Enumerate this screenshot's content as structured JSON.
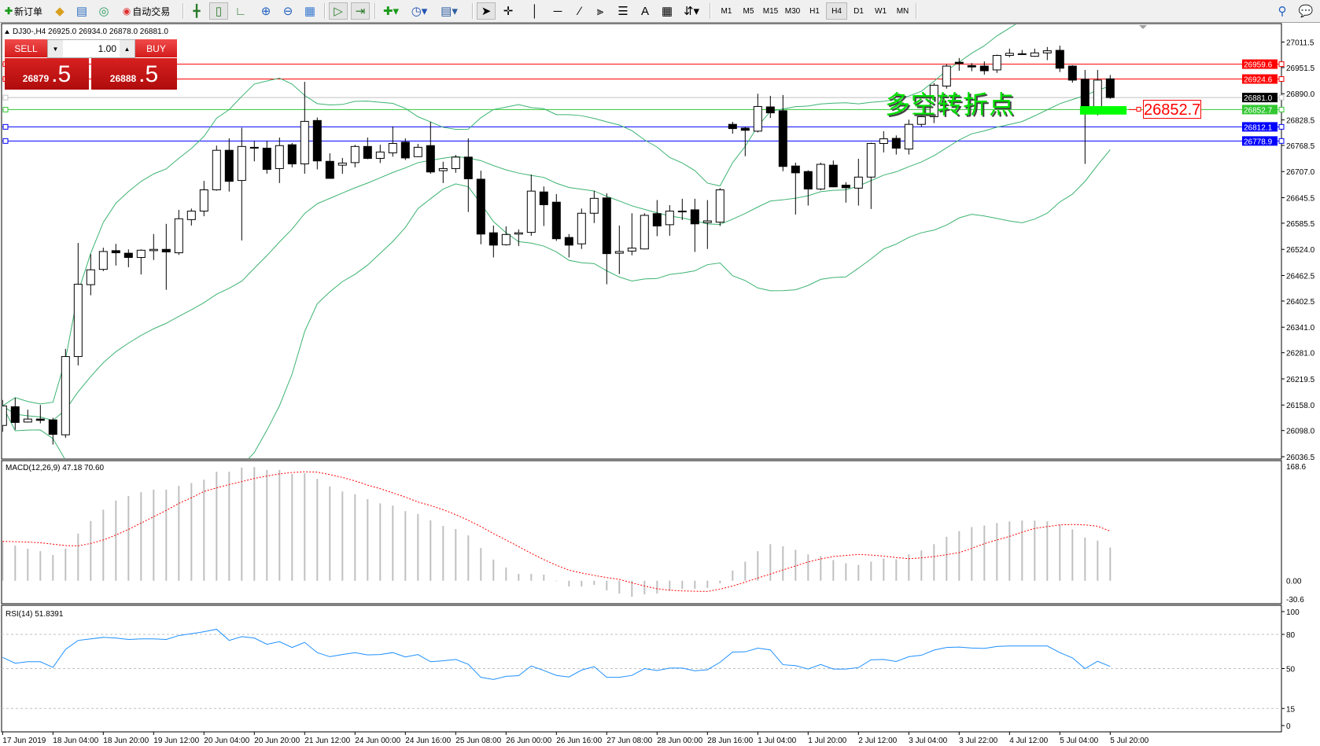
{
  "toolbar": {
    "new_order": "新订单",
    "auto_trade": "自动交易",
    "timeframes": [
      "M1",
      "M5",
      "M15",
      "M30",
      "H1",
      "H4",
      "D1",
      "W1",
      "MN"
    ],
    "active_timeframe": "H4",
    "text_tool": "A"
  },
  "chart": {
    "header": "DJ30-,H4  26925.0 26934.0 26878.0 26881.0"
  },
  "trade_panel": {
    "sell_label": "SELL",
    "buy_label": "BUY",
    "lot": "1.00",
    "sell_main": "26879",
    "sell_frac": ".5",
    "buy_main": "26888",
    "buy_frac": ".5"
  },
  "annotation": {
    "text": "多空转折点",
    "price_label": "26852.7",
    "text_color": "#00e000"
  },
  "chart_data": {
    "type": "candlestick",
    "symbol": "DJ30-",
    "timeframe": "H4",
    "ohlc": [
      [
        26110,
        26170,
        26095,
        26156
      ],
      [
        26154,
        26175,
        26100,
        26117
      ],
      [
        26118,
        26147,
        26117,
        26125
      ],
      [
        26125,
        26158,
        26115,
        26122
      ],
      [
        26123,
        26128,
        26065,
        26089
      ],
      [
        26088,
        26290,
        26081,
        26272
      ],
      [
        26272,
        26539,
        26251,
        26442
      ],
      [
        26441,
        26513,
        26416,
        26476
      ],
      [
        26477,
        26528,
        26473,
        26519
      ],
      [
        26521,
        26537,
        26486,
        26516
      ],
      [
        26515,
        26524,
        26482,
        26505
      ],
      [
        26505,
        26524,
        26465,
        26522
      ],
      [
        26521,
        26560,
        26499,
        26524
      ],
      [
        26524,
        26584,
        26429,
        26518
      ],
      [
        26516,
        26617,
        26511,
        26596
      ],
      [
        26594,
        26620,
        26580,
        26614
      ],
      [
        26614,
        26685,
        26602,
        26664
      ],
      [
        26664,
        26768,
        26662,
        26757
      ],
      [
        26757,
        26785,
        26660,
        26684
      ],
      [
        26686,
        26810,
        26545,
        26766
      ],
      [
        26762,
        26779,
        26731,
        26764
      ],
      [
        26762,
        26779,
        26702,
        26712
      ],
      [
        26714,
        26787,
        26680,
        26768
      ],
      [
        26770,
        26774,
        26717,
        26725
      ],
      [
        26725,
        26918,
        26702,
        26825
      ],
      [
        26827,
        26834,
        26712,
        26732
      ],
      [
        26731,
        26750,
        26690,
        26691
      ],
      [
        26722,
        26739,
        26702,
        26727
      ],
      [
        26728,
        26770,
        26717,
        26766
      ],
      [
        26766,
        26787,
        26736,
        26738
      ],
      [
        26738,
        26770,
        26727,
        26753
      ],
      [
        26751,
        26813,
        26742,
        26773
      ],
      [
        26776,
        26785,
        26734,
        26739
      ],
      [
        26742,
        26772,
        26741,
        26764
      ],
      [
        26768,
        26824,
        26702,
        26706
      ],
      [
        26709,
        26730,
        26680,
        26714
      ],
      [
        26714,
        26746,
        26704,
        26741
      ],
      [
        26741,
        26785,
        26612,
        26690
      ],
      [
        26689,
        26709,
        26536,
        26560
      ],
      [
        26563,
        26580,
        26505,
        26534
      ],
      [
        26535,
        26578,
        26533,
        26559
      ],
      [
        26560,
        26571,
        26532,
        26563
      ],
      [
        26564,
        26700,
        26556,
        26661
      ],
      [
        26659,
        26672,
        26579,
        26629
      ],
      [
        26635,
        26654,
        26544,
        26549
      ],
      [
        26552,
        26560,
        26505,
        26534
      ],
      [
        26537,
        26620,
        26525,
        26609
      ],
      [
        26609,
        26662,
        26586,
        26644
      ],
      [
        26645,
        26656,
        26442,
        26514
      ],
      [
        26515,
        26580,
        26466,
        26519
      ],
      [
        26520,
        26609,
        26510,
        26527
      ],
      [
        26525,
        26609,
        26524,
        26604
      ],
      [
        26608,
        26640,
        26555,
        26579
      ],
      [
        26582,
        26628,
        26556,
        26614
      ],
      [
        26613,
        26643,
        26593,
        26614
      ],
      [
        26617,
        26643,
        26518,
        26584
      ],
      [
        26587,
        26640,
        26525,
        26591
      ],
      [
        26588,
        26668,
        26579,
        26664
      ],
      [
        26818,
        26824,
        26796,
        26808
      ],
      [
        26809,
        26812,
        26743,
        26804
      ],
      [
        26802,
        26890,
        26799,
        26860
      ],
      [
        26859,
        26885,
        26833,
        26845
      ],
      [
        26850,
        26887,
        26708,
        26719
      ],
      [
        26720,
        26728,
        26606,
        26704
      ],
      [
        26707,
        26710,
        26627,
        26666
      ],
      [
        26666,
        26728,
        26663,
        26724
      ],
      [
        26722,
        26733,
        26670,
        26671
      ],
      [
        26675,
        26682,
        26634,
        26669
      ],
      [
        26668,
        26737,
        26627,
        26694
      ],
      [
        26694,
        26775,
        26619,
        26773
      ],
      [
        26773,
        26802,
        26752,
        26784
      ],
      [
        26785,
        26792,
        26747,
        26762
      ],
      [
        26760,
        26829,
        26747,
        26818
      ],
      [
        26818,
        26839,
        26813,
        26836
      ],
      [
        26836,
        26915,
        26821,
        26910
      ],
      [
        26908,
        26959,
        26902,
        26955
      ],
      [
        26964,
        26974,
        26944,
        26961
      ],
      [
        26956,
        26962,
        26943,
        26953
      ],
      [
        26955,
        26966,
        26935,
        26944
      ],
      [
        26946,
        26982,
        26939,
        26980
      ],
      [
        26980,
        26996,
        26976,
        26985
      ],
      [
        26983,
        26993,
        26981,
        26984
      ],
      [
        26978,
        26996,
        26977,
        26986
      ],
      [
        26986,
        27000,
        26969,
        26991
      ],
      [
        26992,
        27003,
        26941,
        26950
      ],
      [
        26955,
        26957,
        26916,
        26922
      ],
      [
        26924,
        26946,
        26725,
        26859
      ],
      [
        26857,
        26946,
        26839,
        26922
      ],
      [
        26925,
        26934,
        26878,
        26881
      ]
    ],
    "bollinger_color": "#3cb371",
    "price_axis_ticks": [
      "27011.5",
      "26951.5",
      "26890.0",
      "26828.5",
      "26768.5",
      "26707.0",
      "26645.5",
      "26585.5",
      "26524.0",
      "26462.5",
      "26402.5",
      "26341.0",
      "26281.0",
      "26219.5",
      "26158.0",
      "26098.0",
      "26036.5"
    ],
    "ylim": [
      26036.5,
      27011.5
    ],
    "hlines": [
      {
        "price": 26959.6,
        "label": "26959.6",
        "color": "#ff0000"
      },
      {
        "price": 26924.6,
        "label": "26924.6",
        "color": "#ff0000"
      },
      {
        "price": 26881.0,
        "label": "26881.0",
        "color": "#c0c0c0",
        "label_bg": "#000000"
      },
      {
        "price": 26852.7,
        "label": "26852.7",
        "color": "#32c832"
      },
      {
        "price": 26812.1,
        "label": "26812.1",
        "color": "#0000ff"
      },
      {
        "price": 26778.9,
        "label": "26778.9",
        "color": "#0000ff"
      }
    ],
    "zone": {
      "from_index": 85.6,
      "to_index": 89.3,
      "top": 26860.8,
      "bottom": 26841.0,
      "color": "#00ff00"
    },
    "time_labels": [
      {
        "index": 0,
        "label": "17 Jun 2019"
      },
      {
        "index": 4,
        "label": "18 Jun 04:00"
      },
      {
        "index": 8,
        "label": "18 Jun 20:00"
      },
      {
        "index": 12,
        "label": "19 Jun 12:00"
      },
      {
        "index": 16,
        "label": "20 Jun 04:00"
      },
      {
        "index": 20,
        "label": "20 Jun 20:00"
      },
      {
        "index": 24,
        "label": "21 Jun 12:00"
      },
      {
        "index": 28,
        "label": "24 Jun 00:00"
      },
      {
        "index": 32,
        "label": "24 Jun 16:00"
      },
      {
        "index": 36,
        "label": "25 Jun 08:00"
      },
      {
        "index": 40,
        "label": "26 Jun 00:00"
      },
      {
        "index": 44,
        "label": "26 Jun 16:00"
      },
      {
        "index": 48,
        "label": "27 Jun 08:00"
      },
      {
        "index": 52,
        "label": "28 Jun 00:00"
      },
      {
        "index": 56,
        "label": "28 Jun 16:00"
      },
      {
        "index": 60,
        "label": "1 Jul 04:00"
      },
      {
        "index": 64,
        "label": "1 Jul 20:00"
      },
      {
        "index": 68,
        "label": "2 Jul 12:00"
      },
      {
        "index": 72,
        "label": "3 Jul 04:00"
      },
      {
        "index": 76,
        "label": "3 Jul 22:00"
      },
      {
        "index": 80,
        "label": "4 Jul 12:00"
      },
      {
        "index": 84,
        "label": "5 Jul 04:00"
      },
      {
        "index": 88,
        "label": "5 Jul 20:00"
      }
    ],
    "macd": {
      "label": "MACD(12,26,9) 47.18 70.60",
      "axis_labels": [
        "168.6",
        "0.00",
        "-30.6"
      ],
      "ylim": [
        -30.6,
        168.6
      ],
      "histogram_color": "#c0c0c0",
      "signal_color": "#ff0000",
      "histogram": [
        56,
        50,
        45.5,
        42,
        36.6,
        45.5,
        67,
        85,
        101,
        114,
        120.5,
        126,
        129.5,
        129.5,
        135,
        139,
        143.7,
        155,
        155,
        161,
        161.6,
        157.5,
        157.5,
        152,
        153,
        145,
        134,
        127,
        123,
        116,
        110,
        107,
        99,
        95,
        86,
        78,
        73.5,
        64.5,
        46.6,
        30,
        18.7,
        9.7,
        9.7,
        8.6,
        -0.7,
        -8.2,
        -8.2,
        -6,
        -13.8,
        -18.3,
        -22.8,
        -19.4,
        -18.3,
        -14.5,
        -11.5,
        -11.5,
        -10.3,
        -3.8,
        14.5,
        27,
        42,
        52,
        49,
        44,
        37.4,
        35,
        29.4,
        24.8,
        22.5,
        27,
        31.7,
        30.5,
        37.4,
        43,
        52,
        62.6,
        70.6,
        76.3,
        78.6,
        82,
        84.4,
        85.5,
        85.5,
        84.4,
        80,
        73,
        61.5,
        57,
        47.18
      ],
      "signal": [
        56,
        55.5,
        55,
        54,
        52,
        50,
        49.6,
        53,
        58,
        65,
        73,
        82,
        91,
        100,
        110,
        118,
        127,
        132,
        137,
        141,
        145.5,
        149,
        152,
        154,
        155,
        154.5,
        151,
        147,
        142,
        136,
        131,
        125,
        119,
        112,
        107,
        101,
        94,
        86,
        77,
        67,
        58,
        48.5,
        39,
        30,
        22,
        15,
        11,
        7.5,
        4.5,
        1.9,
        -3,
        -7.5,
        -11.5,
        -13.5,
        -14.5,
        -15,
        -15.3,
        -12,
        -7.6,
        -2,
        3.8,
        9.5,
        15.3,
        21,
        26.7,
        31,
        34.4,
        36,
        37.4,
        36.5,
        35,
        33,
        31.3,
        32.5,
        34.4,
        37,
        40,
        46,
        52.7,
        58,
        63,
        69,
        74.4,
        77,
        79.4,
        80,
        79.4,
        77.5,
        70.6
      ]
    },
    "rsi": {
      "label": "RSI(14) 51.8391",
      "axis_labels": [
        "100",
        "80",
        "50",
        "15",
        "0"
      ],
      "levels": [
        80,
        50,
        15
      ],
      "ylim": [
        0,
        100
      ],
      "color": "#1e90ff",
      "values": [
        59.8,
        54.7,
        56,
        56,
        51,
        66.8,
        74.7,
        76,
        77.4,
        76.8,
        75.5,
        76,
        76,
        75.5,
        79,
        80.6,
        82.3,
        84.5,
        74.7,
        78,
        76.8,
        71.3,
        73.6,
        68.5,
        73,
        64,
        60.4,
        62.3,
        64,
        62,
        62.3,
        64,
        60.2,
        62.3,
        56,
        56.8,
        58,
        53.8,
        42.3,
        40.4,
        43.2,
        43.8,
        52.3,
        48.3,
        44,
        42.6,
        48.7,
        51.7,
        42.3,
        42.3,
        44,
        50,
        48.3,
        50.4,
        50.4,
        48,
        49,
        55.5,
        64.5,
        64.7,
        67.9,
        66.4,
        53.4,
        52.6,
        49.6,
        53.6,
        49.6,
        49.6,
        50.9,
        57.7,
        58,
        56.2,
        60.4,
        61.7,
        66.2,
        68.5,
        68.9,
        68,
        67.7,
        69.4,
        69.8,
        69.8,
        69.8,
        69.8,
        64,
        59.4,
        50,
        56.4,
        51.84
      ]
    }
  }
}
